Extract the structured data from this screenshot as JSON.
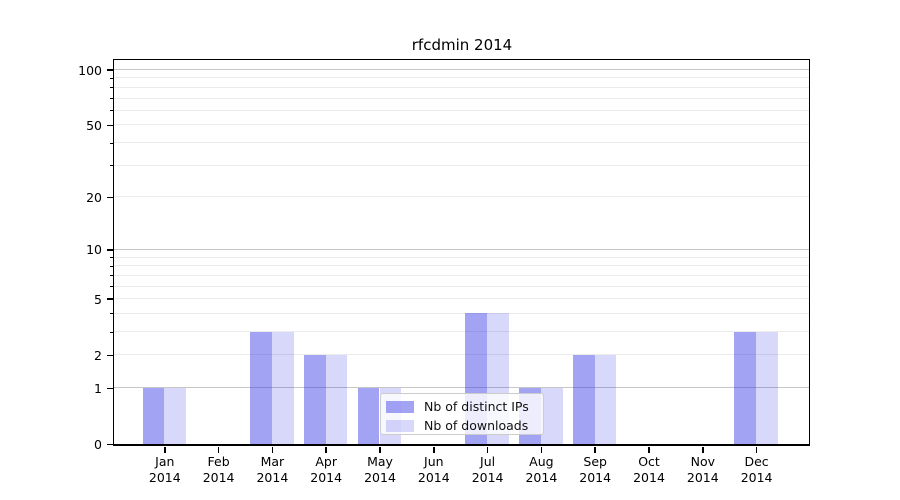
{
  "chart_data": {
    "type": "bar",
    "title": "rfcdmin 2014",
    "categories": [
      "Jan",
      "Feb",
      "Mar",
      "Apr",
      "May",
      "Jun",
      "Jul",
      "Aug",
      "Sep",
      "Oct",
      "Nov",
      "Dec"
    ],
    "x_year_label": "2014",
    "series": [
      {
        "name": "Nb of distinct IPs",
        "color": "rgba(50,50,230,0.45)",
        "values": [
          1,
          0,
          3,
          2,
          1,
          0,
          4,
          1,
          2,
          0,
          0,
          3
        ]
      },
      {
        "name": "Nb of downloads",
        "color": "rgba(50,50,230,0.19)",
        "values": [
          1,
          0,
          3,
          2,
          1,
          0,
          4,
          1,
          2,
          0,
          0,
          3
        ]
      }
    ],
    "y_scale": "log1p",
    "ylim": [
      0,
      113
    ],
    "y_labeled_ticks": [
      {
        "value": 0,
        "label": "0"
      },
      {
        "value": 1,
        "label": "1"
      },
      {
        "value": 2,
        "label": "2"
      },
      {
        "value": 5,
        "label": "5"
      },
      {
        "value": 10,
        "label": "10"
      },
      {
        "value": 20,
        "label": "20"
      },
      {
        "value": 50,
        "label": "50"
      },
      {
        "value": 100,
        "label": "100"
      }
    ],
    "y_decade_gridlines": [
      1,
      10,
      100
    ],
    "y_minor_gridlines": [
      2,
      3,
      4,
      5,
      6,
      7,
      8,
      9,
      20,
      30,
      40,
      50,
      60,
      70,
      80,
      90
    ],
    "grid": true,
    "legend_position": "lower center"
  },
  "colors": {
    "grid_major": "#c6c6c6",
    "grid_minor": "#ebebeb",
    "spine": "#000000",
    "text": "#111111",
    "legend_border": "#cccccc",
    "legend_bg": "rgba(255,255,255,0.8)"
  }
}
